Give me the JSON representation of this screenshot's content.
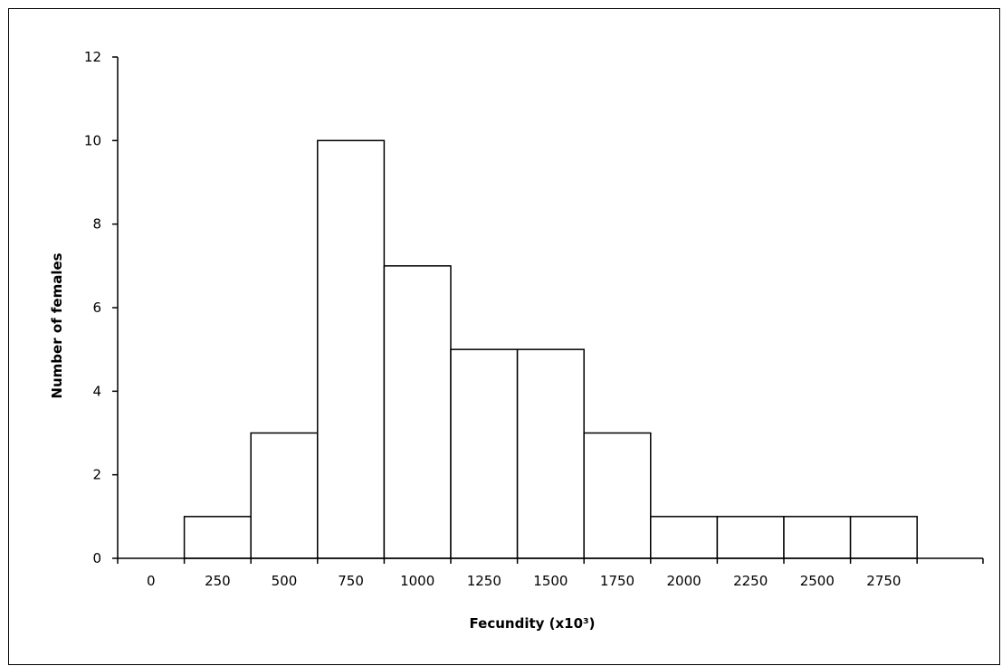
{
  "chart_data": {
    "type": "bar",
    "title": "",
    "xlabel": "Fecundity (x10³)",
    "ylabel": "Number of females",
    "categories": [
      "0",
      "250",
      "500",
      "750",
      "1000",
      "1250",
      "1500",
      "1750",
      "2000",
      "2250",
      "2500",
      "2750"
    ],
    "values": [
      0,
      1,
      3,
      10,
      7,
      5,
      5,
      3,
      1,
      1,
      1,
      1
    ],
    "ylim": [
      0,
      12
    ],
    "yticks": [
      0,
      2,
      4,
      6,
      8,
      10,
      12
    ],
    "grid": false,
    "legend": "none",
    "bar_fill": "#ffffff",
    "bar_stroke": "#000000"
  }
}
